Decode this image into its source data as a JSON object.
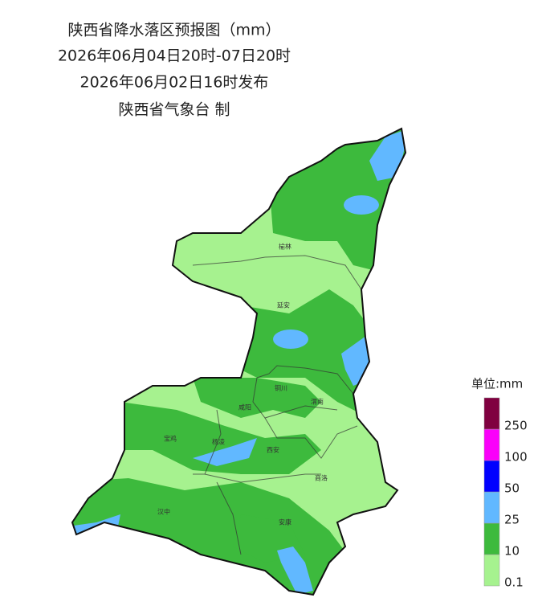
{
  "header": {
    "lines": [
      "陕西省降水落区预报图（mm）",
      "2026年06月04日20时-07日20时",
      "2026年06月02日16时发布",
      "陕西省气象台 制"
    ]
  },
  "cities": [
    "榆林",
    "延安",
    "铜川",
    "渭南",
    "咸阳",
    "宝鸡",
    "杨凌",
    "西安",
    "商洛",
    "汉中",
    "安康"
  ],
  "legend": {
    "title": "单位:mm",
    "levels": [
      {
        "value": 0.1,
        "color": "#a6f28f"
      },
      {
        "value": 10,
        "color": "#3dba3d"
      },
      {
        "value": 25,
        "color": "#61b8ff"
      },
      {
        "value": 50,
        "color": "#0000ff"
      },
      {
        "value": 100,
        "color": "#fa00fa"
      },
      {
        "value": 250,
        "color": "#800040"
      }
    ]
  }
}
